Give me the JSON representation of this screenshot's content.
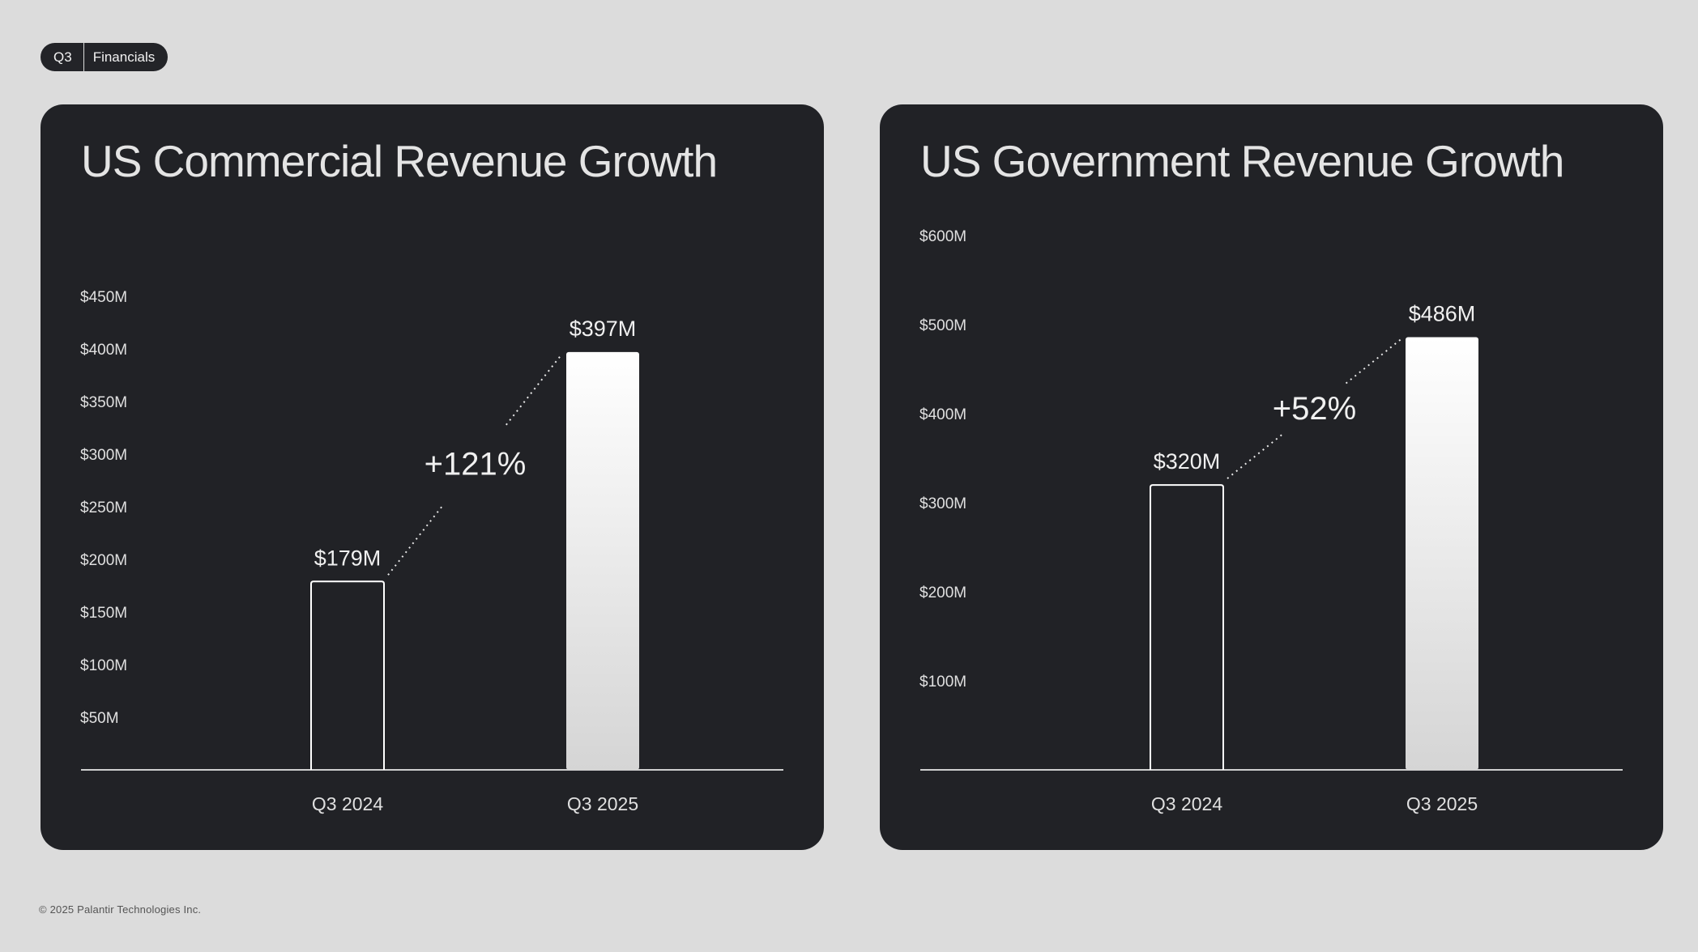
{
  "header": {
    "quarter": "Q3",
    "section": "Financials"
  },
  "footer": {
    "copyright": "© 2025 Palantir Technologies Inc."
  },
  "colors": {
    "background": "#dcdcdc",
    "card": "#212226",
    "text": "#e8e8e8",
    "bar_outline": "#ffffff",
    "bar_fill_top": "#ffffff",
    "bar_fill_bottom": "#d5d5d5"
  },
  "chart_data": [
    {
      "type": "bar",
      "title": "US Commercial Revenue Growth",
      "categories": [
        "Q3 2024",
        "Q3 2025"
      ],
      "values": [
        179,
        397
      ],
      "value_labels": [
        "$179M",
        "$397M"
      ],
      "growth_label": "+121%",
      "y_ticks": [
        {
          "value": 50,
          "label": "$50M"
        },
        {
          "value": 100,
          "label": "$100M"
        },
        {
          "value": 150,
          "label": "$150M"
        },
        {
          "value": 200,
          "label": "$200M"
        },
        {
          "value": 250,
          "label": "$250M"
        },
        {
          "value": 300,
          "label": "$300M"
        },
        {
          "value": 350,
          "label": "$350M"
        },
        {
          "value": 400,
          "label": "$400M"
        },
        {
          "value": 450,
          "label": "$450M"
        }
      ],
      "ylim": [
        0,
        450
      ],
      "grid": false
    },
    {
      "type": "bar",
      "title": "US Government Revenue Growth",
      "categories": [
        "Q3 2024",
        "Q3 2025"
      ],
      "values": [
        320,
        486
      ],
      "value_labels": [
        "$320M",
        "$486M"
      ],
      "growth_label": "+52%",
      "y_ticks": [
        {
          "value": 100,
          "label": "$100M"
        },
        {
          "value": 200,
          "label": "$200M"
        },
        {
          "value": 300,
          "label": "$300M"
        },
        {
          "value": 400,
          "label": "$400M"
        },
        {
          "value": 500,
          "label": "$500M"
        },
        {
          "value": 600,
          "label": "$600M"
        }
      ],
      "ylim": [
        0,
        600
      ],
      "grid": false
    }
  ]
}
